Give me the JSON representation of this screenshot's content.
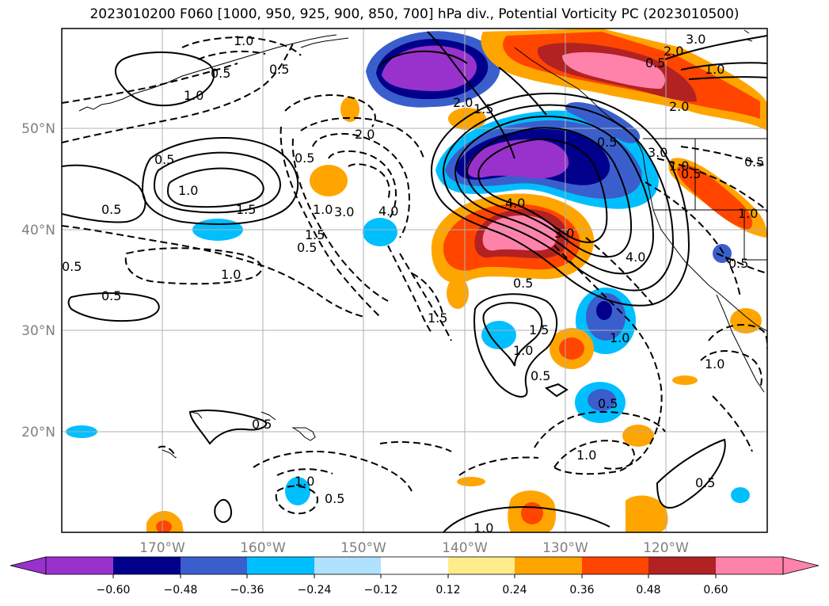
{
  "title": "2023010200 F060 [1000, 950, 925, 900, 850, 700] hPa div., Potential Vorticity PC (2023010500)",
  "map": {
    "lat_labels": [
      "50°N",
      "40°N",
      "30°N",
      "20°N"
    ],
    "lon_labels": [
      "170°W",
      "160°W",
      "150°W",
      "140°W",
      "130°W",
      "120°W"
    ]
  },
  "colorbar": {
    "ticks": [
      "−0.60",
      "−0.48",
      "−0.36",
      "−0.24",
      "−0.12",
      "0.12",
      "0.24",
      "0.36",
      "0.48",
      "0.60"
    ],
    "colors": [
      "#9932cc",
      "#00008b",
      "#3a5fcd",
      "#00bfff",
      "#b0e2ff",
      "#ffffff",
      "#ffec8b",
      "#ffa500",
      "#ff4500",
      "#b22222",
      "#ff82ab"
    ]
  },
  "contour_labels": [
    "1.0",
    "0.5",
    "0.5",
    "1.0",
    "0.5",
    "0.5",
    "1.0",
    "1.5",
    "0.5",
    "0.5",
    "2.0",
    "1.0",
    "3.0",
    "4.0",
    "1.5",
    "1.0",
    "0.5",
    "1.5",
    "0.5",
    "2.0",
    "1.5",
    "2.0",
    "3.0",
    "2.0",
    "1.0",
    "0.5",
    "0.5",
    "1.0",
    "0.5",
    "3.0",
    "0.5",
    "1.0",
    "4.0",
    "4.0",
    "3.0",
    "0.5",
    "0.5",
    "1.5",
    "1.0",
    "1.0",
    "1.0",
    "0.5",
    "0.5",
    "0.5",
    "1.0",
    "0.5",
    "1.0",
    "1.0",
    "0.5"
  ]
}
